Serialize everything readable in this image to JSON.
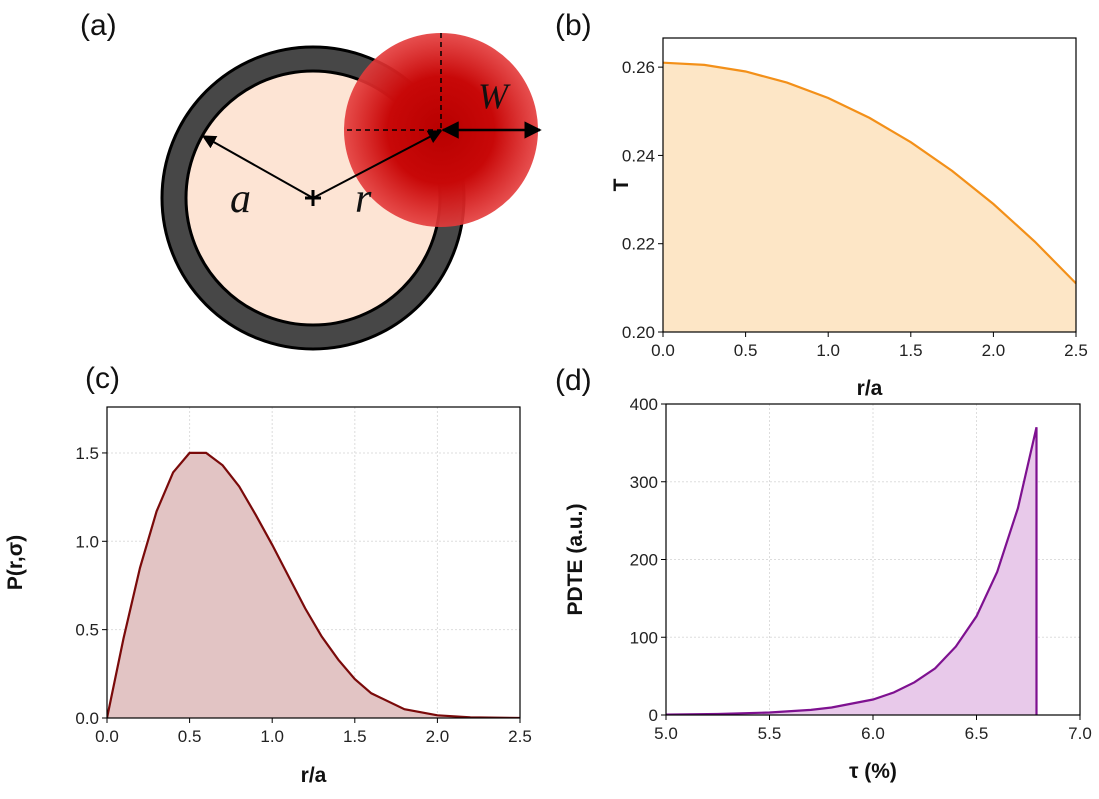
{
  "diagram": {
    "panel_label": "(a)",
    "labels": [
      "a",
      "r",
      "W"
    ]
  },
  "chart_data": [
    {
      "type": "area",
      "panel_label": "(b)",
      "xlabel": "r/a",
      "ylabel": "T",
      "x": [
        0,
        0.25,
        0.5,
        0.75,
        1.0,
        1.25,
        1.5,
        1.75,
        2.0,
        2.25,
        2.5
      ],
      "values": [
        0.261,
        0.2605,
        0.259,
        0.2565,
        0.253,
        0.2485,
        0.243,
        0.2365,
        0.229,
        0.2205,
        0.211
      ],
      "color": "#f39019",
      "fill_color": "#fde6c6",
      "grid": false,
      "xlim": [
        0,
        2.5
      ],
      "ylim": [
        0.2,
        0.2666
      ],
      "xticks": [
        {
          "value": 0,
          "label": "0.0"
        },
        {
          "value": 0.5,
          "label": "0.5"
        },
        {
          "value": 1.0,
          "label": "1.0"
        },
        {
          "value": 1.5,
          "label": "1.5"
        },
        {
          "value": 2.0,
          "label": "2.0"
        },
        {
          "value": 2.5,
          "label": "2.5"
        }
      ],
      "yticks": [
        {
          "value": 0.2,
          "label": "0.20"
        },
        {
          "value": 0.22,
          "label": "0.22"
        },
        {
          "value": 0.24,
          "label": "0.24"
        },
        {
          "value": 0.26,
          "label": "0.26"
        }
      ]
    },
    {
      "type": "area",
      "panel_label": "(c)",
      "xlabel": "r/a",
      "ylabel": "P(r,σ)",
      "x": [
        0,
        0.1,
        0.2,
        0.3,
        0.4,
        0.5,
        0.6,
        0.7,
        0.8,
        0.9,
        1.0,
        1.1,
        1.2,
        1.3,
        1.4,
        1.5,
        1.6,
        1.8,
        2.0,
        2.2,
        2.5
      ],
      "values": [
        0,
        0.45,
        0.85,
        1.17,
        1.39,
        1.5,
        1.5,
        1.43,
        1.31,
        1.15,
        0.98,
        0.8,
        0.62,
        0.46,
        0.33,
        0.22,
        0.14,
        0.05,
        0.015,
        0.004,
        0
      ],
      "color": "#7a0a0a",
      "fill_color": "#e2c4c4",
      "grid": true,
      "xlim": [
        0,
        2.5
      ],
      "ylim": [
        0,
        1.76
      ],
      "xticks": [
        {
          "value": 0,
          "label": "0.0"
        },
        {
          "value": 0.5,
          "label": "0.5"
        },
        {
          "value": 1.0,
          "label": "1.0"
        },
        {
          "value": 1.5,
          "label": "1.5"
        },
        {
          "value": 2.0,
          "label": "2.0"
        },
        {
          "value": 2.5,
          "label": "2.5"
        }
      ],
      "yticks": [
        {
          "value": 0,
          "label": "0.0"
        },
        {
          "value": 0.5,
          "label": "0.5"
        },
        {
          "value": 1.0,
          "label": "1.0"
        },
        {
          "value": 1.5,
          "label": "1.5"
        }
      ]
    },
    {
      "type": "area",
      "panel_label": "(d)",
      "xlabel": "τ (%)",
      "ylabel": "PDTE (a.u.)",
      "x": [
        5.0,
        5.25,
        5.5,
        5.7,
        5.8,
        6.0,
        6.1,
        6.2,
        6.3,
        6.4,
        6.5,
        6.6,
        6.7,
        6.79,
        6.79
      ],
      "values": [
        0.5,
        1.3,
        3.2,
        6.6,
        9.6,
        20,
        29,
        42,
        60,
        88,
        127,
        184,
        266,
        370,
        0
      ],
      "color": "#7e1190",
      "fill_color": "#e8c9ea",
      "grid": true,
      "xlim": [
        5.0,
        7.0
      ],
      "ylim": [
        0,
        400
      ],
      "xticks": [
        {
          "value": 5.0,
          "label": "5.0"
        },
        {
          "value": 5.5,
          "label": "5.5"
        },
        {
          "value": 6.0,
          "label": "6.0"
        },
        {
          "value": 6.5,
          "label": "6.5"
        },
        {
          "value": 7.0,
          "label": "7.0"
        }
      ],
      "yticks": [
        0,
        100,
        200,
        300,
        400
      ]
    }
  ]
}
